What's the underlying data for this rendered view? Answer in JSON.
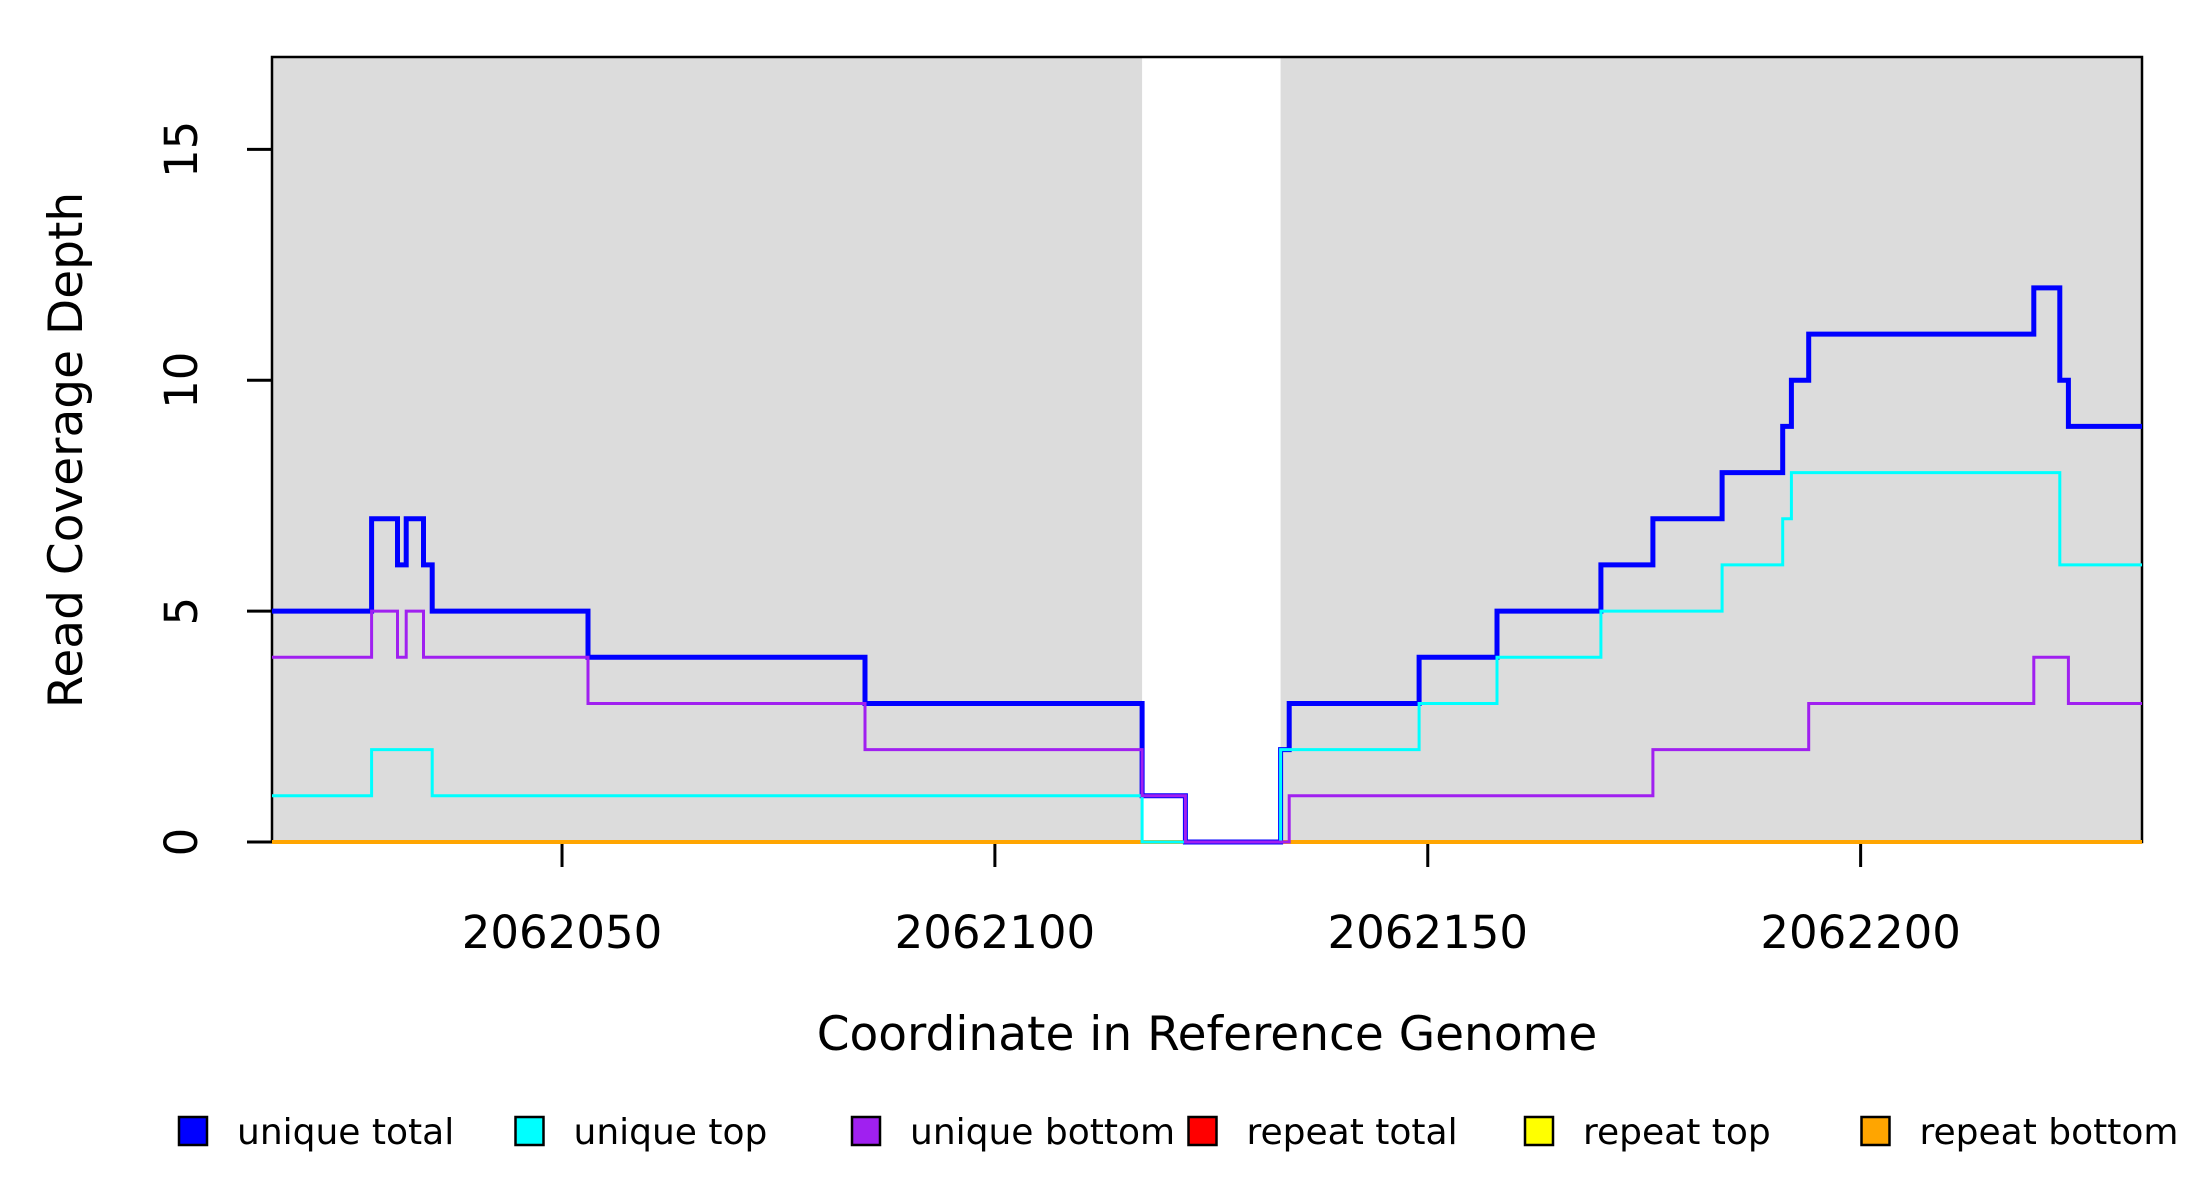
{
  "chart_data": {
    "type": "line",
    "subtype": "step",
    "title": "",
    "xlabel": "Coordinate in Reference Genome",
    "ylabel": "Read Coverage Depth",
    "xlim": [
      2062016.5,
      2062232.5
    ],
    "ylim": [
      0,
      17
    ],
    "x_ticks": [
      2062050,
      2062100,
      2062150,
      2062200
    ],
    "y_ticks": [
      0,
      5,
      10,
      15
    ],
    "grid": false,
    "legend_position": "bottom",
    "background_shading": {
      "color": "#dcdcdc",
      "regions": [
        [
          2062016.5,
          2062117
        ],
        [
          2062133,
          2062232.5
        ]
      ],
      "white_gap": [
        2062117,
        2062133
      ]
    },
    "axis_color": "#000000",
    "series": [
      {
        "name": "unique total",
        "color": "#0000ff",
        "line_width": 5,
        "steps": [
          [
            2062017,
            5
          ],
          [
            2062028,
            7
          ],
          [
            2062031,
            6
          ],
          [
            2062032,
            7
          ],
          [
            2062034,
            6
          ],
          [
            2062035,
            5
          ],
          [
            2062053,
            4
          ],
          [
            2062085,
            3
          ],
          [
            2062117,
            1
          ],
          [
            2062122,
            0
          ],
          [
            2062133,
            2
          ],
          [
            2062134,
            3
          ],
          [
            2062149,
            4
          ],
          [
            2062158,
            5
          ],
          [
            2062170,
            6
          ],
          [
            2062176,
            7
          ],
          [
            2062184,
            8
          ],
          [
            2062191,
            9
          ],
          [
            2062192,
            10
          ],
          [
            2062194,
            11
          ],
          [
            2062220,
            12
          ],
          [
            2062223,
            10
          ],
          [
            2062224,
            9
          ]
        ]
      },
      {
        "name": "unique top",
        "color": "#00ffff",
        "line_width": 3,
        "steps": [
          [
            2062017,
            1
          ],
          [
            2062028,
            2
          ],
          [
            2062035,
            1
          ],
          [
            2062117,
            0
          ],
          [
            2062133,
            2
          ],
          [
            2062149,
            3
          ],
          [
            2062158,
            4
          ],
          [
            2062170,
            5
          ],
          [
            2062184,
            6
          ],
          [
            2062191,
            7
          ],
          [
            2062192,
            8
          ],
          [
            2062223,
            6
          ]
        ]
      },
      {
        "name": "unique bottom",
        "color": "#a020f0",
        "line_width": 3,
        "steps": [
          [
            2062017,
            4
          ],
          [
            2062028,
            5
          ],
          [
            2062031,
            4
          ],
          [
            2062032,
            5
          ],
          [
            2062034,
            4
          ],
          [
            2062053,
            3
          ],
          [
            2062085,
            2
          ],
          [
            2062117,
            1
          ],
          [
            2062122,
            0
          ],
          [
            2062134,
            1
          ],
          [
            2062176,
            2
          ],
          [
            2062194,
            3
          ],
          [
            2062220,
            4
          ],
          [
            2062224,
            3
          ]
        ]
      },
      {
        "name": "repeat total",
        "color": "#ff0000",
        "line_width": 3,
        "steps": [
          [
            2062017,
            0
          ]
        ]
      },
      {
        "name": "repeat top",
        "color": "#ffff00",
        "line_width": 3,
        "steps": [
          [
            2062017,
            0
          ]
        ]
      },
      {
        "name": "repeat bottom",
        "color": "#ffa500",
        "line_width": 4,
        "steps": [
          [
            2062017,
            0
          ]
        ]
      }
    ],
    "draw_order": [
      "repeat total",
      "repeat top",
      "repeat bottom",
      "unique total",
      "unique top",
      "unique bottom"
    ]
  }
}
